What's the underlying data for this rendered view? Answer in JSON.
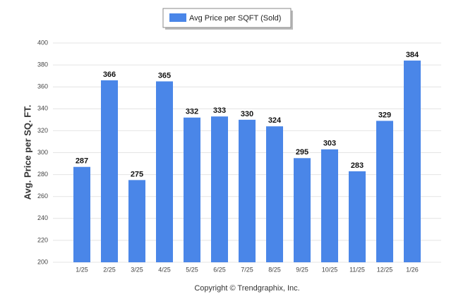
{
  "chart_data": {
    "type": "bar",
    "legend": "Avg Price per SQFT (Sold)",
    "ylabel": "Avg. Price per SQ. FT.",
    "caption": "Copyright © Trendgraphix, Inc.",
    "categories": [
      "1/25",
      "2/25",
      "3/25",
      "4/25",
      "5/25",
      "6/25",
      "7/25",
      "8/25",
      "9/25",
      "10/25",
      "11/25",
      "12/25",
      "1/26"
    ],
    "values": [
      287,
      366,
      275,
      365,
      332,
      333,
      330,
      324,
      295,
      303,
      283,
      329,
      384
    ],
    "color": "#4a86e8",
    "ylim": [
      200,
      400
    ],
    "yticks": [
      200,
      220,
      240,
      260,
      280,
      300,
      320,
      340,
      360,
      380,
      400
    ],
    "grid": true,
    "legend_position": "top"
  }
}
